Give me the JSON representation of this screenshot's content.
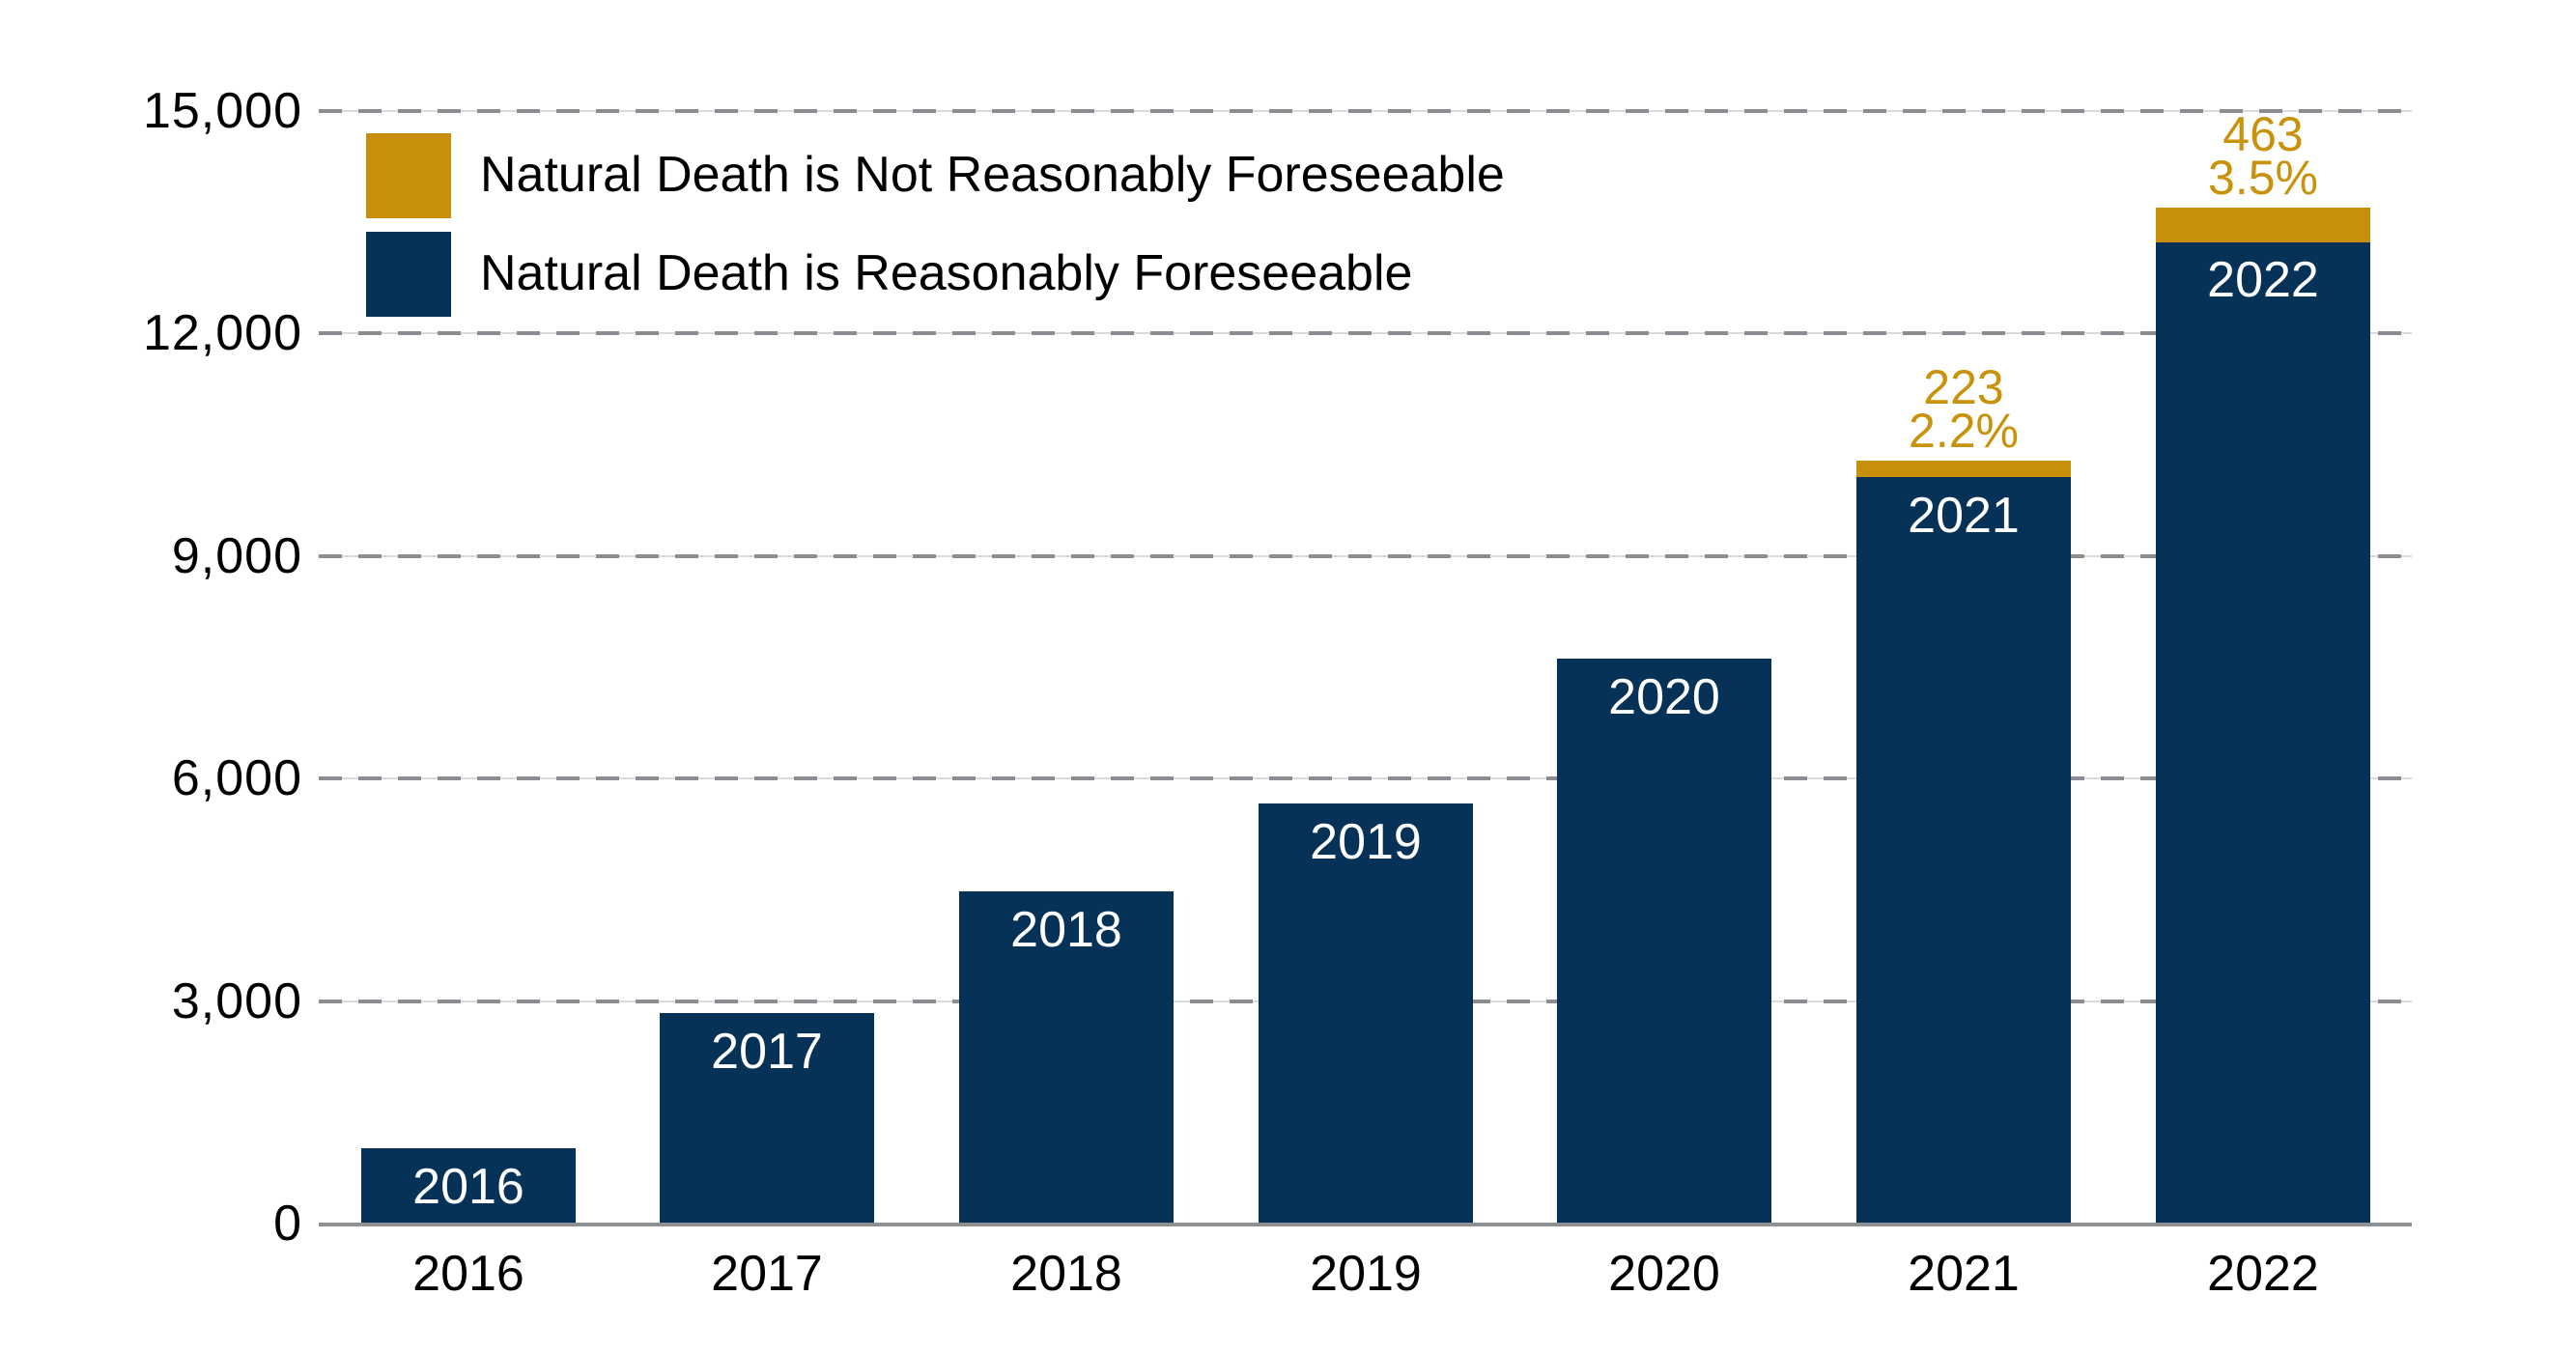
{
  "chart_data": {
    "type": "bar",
    "stacked": true,
    "title": "",
    "xlabel": "",
    "ylabel": "",
    "categories": [
      "2016",
      "2017",
      "2018",
      "2019",
      "2020",
      "2021",
      "2022"
    ],
    "series": [
      {
        "name": "Natural Death is Reasonably Foreseeable",
        "color": "#063258",
        "values": [
          1018,
          2838,
          4480,
          5661,
          7611,
          10064,
          13241
        ]
      },
      {
        "name": "Natural Death is Not Reasonably Foreseeable",
        "color": "#c8900a",
        "values": [
          0,
          0,
          0,
          0,
          0,
          223,
          463
        ]
      }
    ],
    "bar_inner_labels": [
      "2016",
      "2017",
      "2018",
      "2019",
      "2020",
      "2021",
      "2022"
    ],
    "annotations": [
      {
        "category": "2021",
        "lines": [
          "223",
          "2.2%"
        ]
      },
      {
        "category": "2022",
        "lines": [
          "463",
          "3.5%"
        ]
      }
    ],
    "y_axis": {
      "min": 0,
      "max": 15000,
      "tick_step": 3000,
      "ticks": [
        {
          "value": 0,
          "label": "0"
        },
        {
          "value": 3000,
          "label": "3,000"
        },
        {
          "value": 6000,
          "label": "6,000"
        },
        {
          "value": 9000,
          "label": "9,000"
        },
        {
          "value": 12000,
          "label": "12,000"
        },
        {
          "value": 15000,
          "label": "15,000"
        }
      ]
    },
    "legend": {
      "position": "top-left",
      "items": [
        {
          "label": "Natural Death is Not Reasonably Foreseeable",
          "color": "#c8900a"
        },
        {
          "label": "Natural Death is Reasonably Foreseeable",
          "color": "#063258"
        }
      ]
    },
    "grid": {
      "horizontal": true,
      "style": "dashed",
      "dash_color": "#8a8d91",
      "underline_color": "#dbdbdb"
    },
    "colors": {
      "navy": "#063258",
      "gold": "#c8900a",
      "annotation_text": "#c8920b",
      "bar_label_text": "#ffffff",
      "axis_text": "#000000",
      "baseline": "#8e9194"
    }
  }
}
